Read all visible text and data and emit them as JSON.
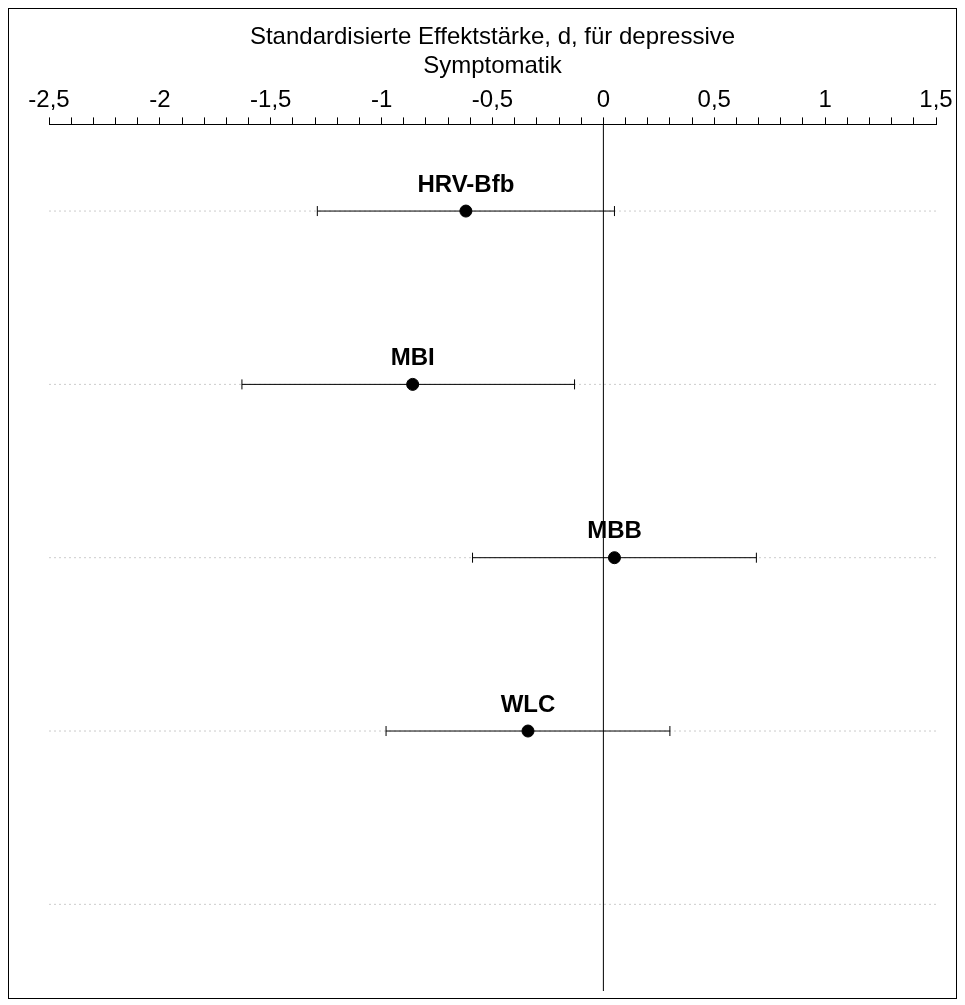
{
  "chart_data": {
    "type": "scatter",
    "orientation": "horizontal",
    "xlabel": "Standardisierte Effektstärke, d, für depressive Symptomatik",
    "categories": [
      "HRV-Bfb",
      "MBI",
      "MBB",
      "WLC",
      null
    ],
    "values": [
      -0.62,
      -0.86,
      0.05,
      -0.34,
      null
    ],
    "errors": [
      [
        -1.29,
        0.05
      ],
      [
        -1.63,
        -0.13
      ],
      [
        -0.59,
        0.69
      ],
      [
        -0.98,
        0.3
      ],
      null
    ],
    "color": "#000000",
    "marker": "circle",
    "grid": "y",
    "legend": false,
    "xlim": [
      -2.5,
      1.5
    ],
    "xticks": [
      {
        "value": -2.5,
        "label": "-2,5"
      },
      {
        "value": -2.4,
        "label": null
      },
      {
        "value": -2.3,
        "label": null
      },
      {
        "value": -2.2,
        "label": null
      },
      {
        "value": -2.1,
        "label": null
      },
      {
        "value": -2,
        "label": "-2"
      },
      {
        "value": -1.9,
        "label": null
      },
      {
        "value": -1.8,
        "label": null
      },
      {
        "value": -1.7,
        "label": null
      },
      {
        "value": -1.6,
        "label": null
      },
      {
        "value": -1.5,
        "label": "-1,5"
      },
      {
        "value": -1.4,
        "label": null
      },
      {
        "value": -1.3,
        "label": null
      },
      {
        "value": -1.2,
        "label": null
      },
      {
        "value": -1.1,
        "label": null
      },
      {
        "value": -1,
        "label": "-1"
      },
      {
        "value": -0.9,
        "label": null
      },
      {
        "value": -0.8,
        "label": null
      },
      {
        "value": -0.7,
        "label": null
      },
      {
        "value": -0.6,
        "label": null
      },
      {
        "value": -0.5,
        "label": "-0,5"
      },
      {
        "value": -0.4,
        "label": null
      },
      {
        "value": -0.3,
        "label": null
      },
      {
        "value": -0.2,
        "label": null
      },
      {
        "value": -0.1,
        "label": null
      },
      {
        "value": 0,
        "label": "0"
      },
      {
        "value": 0.1,
        "label": null
      },
      {
        "value": 0.2,
        "label": null
      },
      {
        "value": 0.3,
        "label": null
      },
      {
        "value": 0.4,
        "label": null
      },
      {
        "value": 0.5,
        "label": "0,5"
      },
      {
        "value": 0.6,
        "label": null
      },
      {
        "value": 0.7,
        "label": null
      },
      {
        "value": 0.8,
        "label": null
      },
      {
        "value": 0.9,
        "label": null
      },
      {
        "value": 1,
        "label": "1"
      },
      {
        "value": 1.1,
        "label": null
      },
      {
        "value": 1.2,
        "label": null
      },
      {
        "value": 1.3,
        "label": null
      },
      {
        "value": 1.4,
        "label": null
      },
      {
        "value": 1.5,
        "label": "1,5"
      }
    ],
    "ref_lines": [
      {
        "axis": "x",
        "value": 0,
        "label": null,
        "color": "#000000"
      }
    ]
  }
}
